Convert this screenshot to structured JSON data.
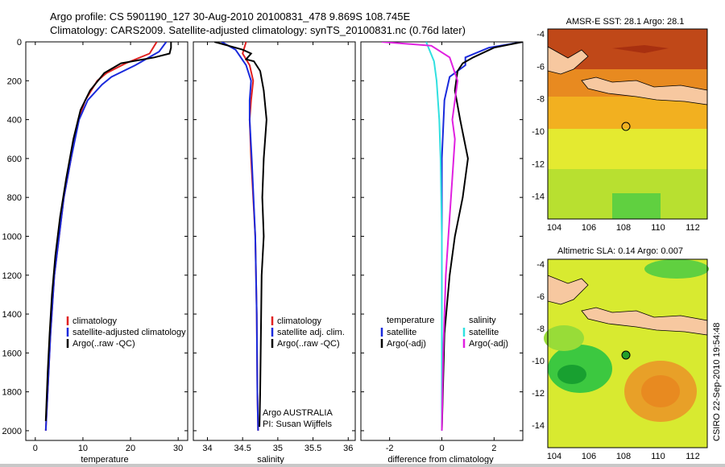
{
  "header": {
    "title_line1": "Argo profile: CS 5901190_127 30-Aug-2010 20100831_478 9.869S 108.745E",
    "title_line2": "Climatology: CARS2009. Satellite-adjusted climatology: synTS_20100831.nc (0.76d later)"
  },
  "colors": {
    "climatology": "#e02020",
    "satellite": "#1a2adc",
    "argo": "#000000",
    "sat_diff": "#30e0e0",
    "argo_adj": "#e020e0"
  },
  "depth_ticks": [
    "0",
    "200",
    "400",
    "600",
    "800",
    "1000",
    "1200",
    "1400",
    "1600",
    "1800",
    "2000"
  ],
  "chart_data": [
    {
      "type": "line",
      "id": "temperature",
      "xlabel": "temperature",
      "xlim": [
        -2,
        32
      ],
      "ylim": [
        2050,
        0
      ],
      "xticks": [
        "0",
        "10",
        "20",
        "30"
      ],
      "legend": [
        "climatology",
        "satellite-adjusted climatology",
        "Argo(..raw -QC)"
      ],
      "series": [
        {
          "name": "climatology",
          "x": [
            25.5,
            24,
            19,
            15,
            13,
            10.5,
            9,
            7.5,
            6,
            5,
            4,
            3.2,
            2.6,
            2.2
          ],
          "y": [
            0,
            60,
            110,
            160,
            200,
            300,
            400,
            600,
            800,
            1000,
            1200,
            1500,
            1800,
            2000
          ]
        },
        {
          "name": "satellite-adjusted climatology",
          "x": [
            27.5,
            26,
            21,
            16,
            14,
            11,
            9.2,
            7.5,
            6,
            5,
            4,
            3.2,
            2.6,
            2.2
          ],
          "y": [
            0,
            50,
            120,
            180,
            220,
            300,
            400,
            600,
            800,
            1000,
            1200,
            1500,
            1800,
            2000
          ]
        },
        {
          "name": "Argo(..raw -QC)",
          "x": [
            28.5,
            28.5,
            28.2,
            25,
            18,
            14.5,
            11.5,
            9.5,
            8,
            6.5,
            5.2,
            4.2,
            3.5,
            3,
            2.6,
            2.2
          ],
          "y": [
            0,
            30,
            60,
            80,
            110,
            160,
            250,
            350,
            500,
            700,
            900,
            1100,
            1300,
            1500,
            1700,
            1950
          ]
        }
      ]
    },
    {
      "type": "line",
      "id": "salinity",
      "xlabel": "salinity",
      "xlim": [
        33.8,
        36.1
      ],
      "ylim": [
        2050,
        0
      ],
      "xticks": [
        "34",
        "34.5",
        "35",
        "35.5",
        "36"
      ],
      "legend": [
        "climatology",
        "satellite adj. clim.",
        "Argo(..raw -QC)"
      ],
      "annotation": [
        "Argo AUSTRALIA",
        "PI: Susan Wijffels"
      ],
      "series": [
        {
          "name": "climatology",
          "x": [
            34.55,
            34.5,
            34.6,
            34.65,
            34.62,
            34.6,
            34.62,
            34.68,
            34.7,
            34.71,
            34.72
          ],
          "y": [
            0,
            60,
            120,
            200,
            300,
            400,
            600,
            1000,
            1400,
            1800,
            2000
          ]
        },
        {
          "name": "satellite adj. clim.",
          "x": [
            34.2,
            34.4,
            34.55,
            34.62,
            34.6,
            34.6,
            34.63,
            34.68,
            34.7,
            34.71,
            34.72
          ],
          "y": [
            0,
            40,
            120,
            200,
            300,
            400,
            600,
            1000,
            1400,
            1800,
            2000
          ]
        },
        {
          "name": "Argo(..raw -QC)",
          "x": [
            34.1,
            34.3,
            34.5,
            34.62,
            34.55,
            34.66,
            34.75,
            34.8,
            34.84,
            34.8,
            34.78,
            34.8,
            34.77,
            34.76,
            34.75,
            34.74
          ],
          "y": [
            0,
            20,
            40,
            60,
            90,
            100,
            150,
            250,
            400,
            600,
            800,
            1000,
            1200,
            1500,
            1800,
            1980
          ]
        }
      ]
    },
    {
      "type": "line",
      "id": "difference",
      "xlabel": "difference from climatology",
      "xlim": [
        -3.1,
        3.1
      ],
      "ylim": [
        2050,
        0
      ],
      "xticks": [
        "-2",
        "0",
        "2"
      ],
      "legend_temperature": [
        "temperature",
        "satellite",
        "Argo(-adj)"
      ],
      "legend_salinity": [
        "salinity",
        "satellite",
        "Argo(-adj)"
      ],
      "series": [
        {
          "name": "temperature satellite",
          "x": [
            3.1,
            1.8,
            0.9,
            0.9,
            0.3,
            0.1,
            0,
            0,
            0,
            0
          ],
          "y": [
            0,
            30,
            80,
            120,
            180,
            300,
            600,
            1000,
            1500,
            2000
          ]
        },
        {
          "name": "temperature Argo(-adj)",
          "x": [
            3.1,
            2,
            1.2,
            0.8,
            0.6,
            0.5,
            0.7,
            1,
            0.8,
            0.5,
            0.3,
            0.1,
            0
          ],
          "y": [
            0,
            30,
            80,
            110,
            150,
            250,
            400,
            600,
            800,
            1000,
            1200,
            1500,
            2000
          ]
        },
        {
          "name": "salinity satellite",
          "x": [
            -0.6,
            -0.3,
            -0.2,
            -0.1,
            -0.05,
            0,
            0,
            0
          ],
          "y": [
            0,
            100,
            200,
            400,
            600,
            1000,
            1500,
            2000
          ]
        },
        {
          "name": "salinity Argo(-adj)",
          "x": [
            -2.3,
            -0.4,
            0.3,
            0.6,
            0.4,
            0.5,
            0.4,
            0.3,
            0.15,
            0.05,
            0
          ],
          "y": [
            0,
            20,
            80,
            200,
            400,
            500,
            700,
            900,
            1200,
            1600,
            2000
          ]
        }
      ]
    }
  ],
  "maps": [
    {
      "id": "sst",
      "title": "AMSR-E SST: 28.1 Argo: 28.1",
      "yticks": [
        "-4",
        "-6",
        "-8",
        "-10",
        "-12",
        "-14"
      ],
      "xticks": [
        "104",
        "106",
        "108",
        "110",
        "112"
      ]
    },
    {
      "id": "sla",
      "title": "Altimetric SLA: 0.14 Argo: 0.007",
      "yticks": [
        "-4",
        "-6",
        "-8",
        "-10",
        "-12",
        "-14"
      ],
      "xticks": [
        "104",
        "106",
        "108",
        "110",
        "112"
      ]
    }
  ],
  "credit": "CSIRO 22-Sep-2010 19:54:48"
}
